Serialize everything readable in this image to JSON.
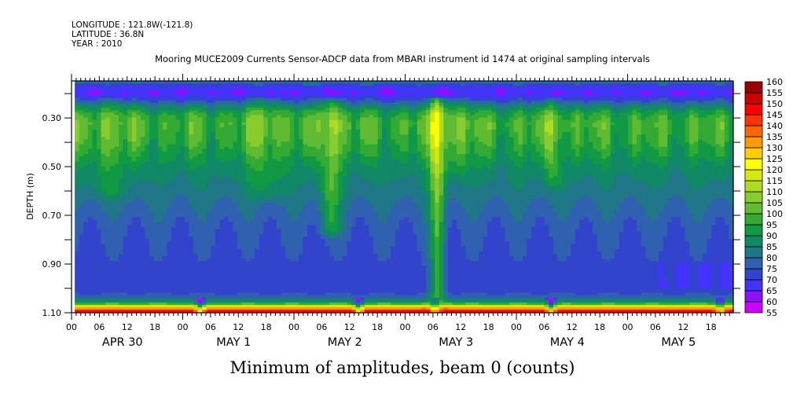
{
  "header": {
    "lines": [
      "LONGITUDE : 121.8W(-121.8)",
      "LATITUDE : 36.8N",
      "YEAR : 2010"
    ],
    "title": "Mooring MUCE2009 Currents Sensor-ADCP data from MBARI instrument id 1474 at original sampling intervals"
  },
  "chart_data": {
    "type": "heatmap",
    "title": "Mooring MUCE2009 Currents Sensor-ADCP data from MBARI instrument id 1474 at original sampling intervals",
    "xlabel": "Minimum of amplitudes, beam 0 (counts)",
    "ylabel": "DEPTH (m)",
    "x_units": "hours since APR 30 2010 00:00",
    "xlim": [
      0,
      142.8
    ],
    "data_start_hour": 0.7,
    "ylim": [
      1.1,
      0.148
    ],
    "y_ticks": [
      0.2,
      0.3,
      0.4,
      0.5,
      0.6,
      0.7,
      0.8,
      0.9,
      1.0,
      1.1
    ],
    "y_tick_labels": {
      "0.3": "0.30",
      "0.5": "0.50",
      "0.7": "0.70",
      "0.9": "0.90",
      "1.1": "1.10"
    },
    "x_hour_labels": [
      "00",
      "06",
      "12",
      "18",
      "00",
      "06",
      "12",
      "18",
      "00",
      "06",
      "12",
      "18",
      "00",
      "06",
      "12",
      "18",
      "00",
      "06",
      "12",
      "18",
      "00",
      "06",
      "12",
      "18"
    ],
    "x_day_labels": [
      "APR 30",
      "MAY  1",
      "MAY  2",
      "MAY  3",
      "MAY  4",
      "MAY  5"
    ],
    "colorbar": {
      "levels": [
        55,
        60,
        65,
        70,
        75,
        80,
        85,
        90,
        95,
        100,
        105,
        110,
        115,
        120,
        125,
        130,
        135,
        140,
        145,
        150,
        155,
        160
      ],
      "colors": [
        "#cc00ff",
        "#8811ff",
        "#4433ff",
        "#3344cc",
        "#3060b0",
        "#207788",
        "#118866",
        "#119944",
        "#33aa33",
        "#60bb33",
        "#88cc30",
        "#b0dc20",
        "#d4e80a",
        "#ffff00",
        "#ffcc00",
        "#ff9900",
        "#ff6600",
        "#ff3300",
        "#ff0000",
        "#cc0000",
        "#990000"
      ]
    },
    "mean_profile": {
      "depth": [
        0.148,
        0.16,
        0.18,
        0.2,
        0.22,
        0.25,
        0.28,
        0.32,
        0.38,
        0.44,
        0.5,
        0.56,
        0.62,
        0.7,
        0.8,
        0.9,
        1.0,
        1.03,
        1.05,
        1.065,
        1.075,
        1.085,
        1.095,
        1.1
      ],
      "counts": [
        82,
        76,
        68,
        66,
        72,
        84,
        94,
        99,
        97,
        93,
        88,
        85,
        82,
        78,
        75,
        73,
        72,
        76,
        86,
        102,
        122,
        138,
        148,
        152
      ]
    },
    "events": [
      {
        "hour": 8,
        "amp": 7,
        "width": 4,
        "depth_max": 0.6
      },
      {
        "hour": 42,
        "amp": 8,
        "width": 4,
        "depth_max": 0.6
      },
      {
        "hour": 56,
        "amp": 16,
        "width": 2.2,
        "depth_max": 0.75
      },
      {
        "hour": 79,
        "amp": 24,
        "width": 1.6,
        "depth_max": 1.02
      },
      {
        "hour": 104,
        "amp": 10,
        "width": 1.8,
        "depth_max": 0.55
      },
      {
        "hour": 83,
        "amp": 6,
        "width": 4,
        "depth_max": 0.5
      }
    ],
    "bottom_dips": [
      {
        "hour": 27.8,
        "amp": 25
      },
      {
        "hour": 62,
        "amp": 25
      },
      {
        "hour": 78.5,
        "amp": 18
      },
      {
        "hour": 103.5,
        "amp": 28
      },
      {
        "hour": 140,
        "amp": 22
      }
    ]
  }
}
